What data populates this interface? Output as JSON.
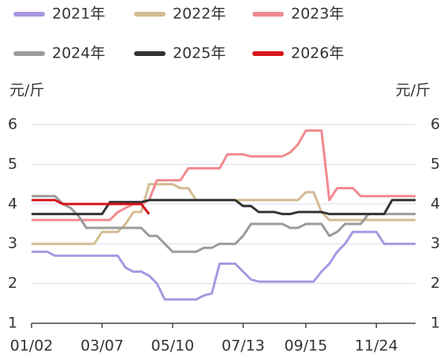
{
  "chart_data": {
    "type": "line",
    "y_label": "元/斤",
    "categories": [
      "01/02",
      null,
      null,
      null,
      null,
      null,
      null,
      null,
      null,
      "03/07",
      null,
      null,
      null,
      null,
      null,
      null,
      null,
      null,
      "05/10",
      null,
      null,
      null,
      null,
      null,
      null,
      null,
      null,
      "07/13",
      null,
      null,
      null,
      null,
      null,
      null,
      null,
      "09/15",
      null,
      null,
      null,
      null,
      null,
      null,
      null,
      null,
      "11/24",
      null,
      null,
      null,
      null,
      null
    ],
    "series": [
      {
        "name": "2021年",
        "color": "#a897e0",
        "values": [
          2.8,
          2.8,
          2.8,
          2.7,
          2.7,
          2.7,
          2.7,
          2.7,
          2.7,
          2.7,
          2.7,
          2.7,
          2.4,
          2.3,
          2.3,
          2.2,
          2.0,
          1.6,
          1.6,
          1.6,
          1.6,
          1.6,
          1.7,
          1.75,
          2.5,
          2.5,
          2.5,
          2.3,
          2.1,
          2.05,
          2.05,
          2.05,
          2.05,
          2.05,
          2.05,
          2.05,
          2.05,
          2.3,
          2.5,
          2.8,
          3.0,
          3.3,
          3.3,
          3.3,
          3.3,
          3.0,
          3.0,
          3.0,
          3.0,
          3.0
        ]
      },
      {
        "name": "2022年",
        "color": "#d4bc91",
        "values": [
          3.0,
          3.0,
          3.0,
          3.0,
          3.0,
          3.0,
          3.0,
          3.0,
          3.0,
          3.3,
          3.3,
          3.3,
          3.5,
          3.8,
          3.8,
          4.5,
          4.5,
          4.5,
          4.5,
          4.4,
          4.4,
          4.1,
          4.1,
          4.1,
          4.1,
          4.1,
          4.1,
          4.1,
          4.1,
          4.1,
          4.1,
          4.1,
          4.1,
          4.1,
          4.1,
          4.3,
          4.3,
          3.8,
          3.6,
          3.6,
          3.6,
          3.6,
          3.6,
          3.6,
          3.6,
          3.6,
          3.6,
          3.6,
          3.6,
          3.6
        ]
      },
      {
        "name": "2023年",
        "color": "#f08a8f",
        "values": [
          3.6,
          3.6,
          3.6,
          3.6,
          3.6,
          3.6,
          3.6,
          3.6,
          3.6,
          3.6,
          3.6,
          3.8,
          3.9,
          4.0,
          4.0,
          4.1,
          4.6,
          4.6,
          4.6,
          4.6,
          4.9,
          4.9,
          4.9,
          4.9,
          4.9,
          5.25,
          5.25,
          5.25,
          5.2,
          5.2,
          5.2,
          5.2,
          5.2,
          5.3,
          5.5,
          5.85,
          5.85,
          5.85,
          4.1,
          4.4,
          4.4,
          4.4,
          4.2,
          4.2,
          4.2,
          4.2,
          4.2,
          4.2,
          4.2,
          4.2
        ]
      },
      {
        "name": "2024年",
        "color": "#9b9b9b",
        "values": [
          4.2,
          4.2,
          4.2,
          4.2,
          4.0,
          3.9,
          3.7,
          3.4,
          3.4,
          3.4,
          3.4,
          3.4,
          3.4,
          3.4,
          3.4,
          3.2,
          3.2,
          3.0,
          2.8,
          2.8,
          2.8,
          2.8,
          2.9,
          2.9,
          3.0,
          3.0,
          3.0,
          3.2,
          3.5,
          3.5,
          3.5,
          3.5,
          3.5,
          3.4,
          3.4,
          3.5,
          3.5,
          3.5,
          3.2,
          3.3,
          3.5,
          3.5,
          3.5,
          3.75,
          3.75,
          3.75,
          3.75,
          3.75,
          3.75,
          3.75
        ]
      },
      {
        "name": "2025年",
        "color": "#333333",
        "values": [
          3.75,
          3.75,
          3.75,
          3.75,
          3.75,
          3.75,
          3.75,
          3.75,
          3.75,
          3.75,
          4.05,
          4.05,
          4.05,
          4.05,
          4.05,
          4.1,
          4.1,
          4.1,
          4.1,
          4.1,
          4.1,
          4.1,
          4.1,
          4.1,
          4.1,
          4.1,
          4.1,
          3.95,
          3.95,
          3.8,
          3.8,
          3.8,
          3.75,
          3.75,
          3.8,
          3.8,
          3.8,
          3.8,
          3.75,
          3.75,
          3.75,
          3.75,
          3.75,
          3.75,
          3.75,
          3.75,
          4.1,
          4.1,
          4.1,
          4.1
        ]
      },
      {
        "name": "2026年",
        "color": "#d7141c",
        "values": [
          4.1,
          4.1,
          4.1,
          4.1,
          4.0,
          4.0,
          4.0,
          4.0,
          4.0,
          4.0,
          4.0,
          4.0,
          4.0,
          4.0,
          4.0,
          3.75,
          null,
          null,
          null,
          null,
          null,
          null,
          null,
          null,
          null,
          null,
          null,
          null,
          null,
          null,
          null,
          null,
          null,
          null,
          null,
          null,
          null,
          null,
          null,
          null,
          null,
          null,
          null,
          null,
          null,
          null,
          null,
          null,
          null,
          null
        ]
      }
    ],
    "ylim": [
      1,
      6
    ],
    "yticks": [
      1,
      2,
      3,
      4,
      5,
      6
    ],
    "grid": true
  }
}
